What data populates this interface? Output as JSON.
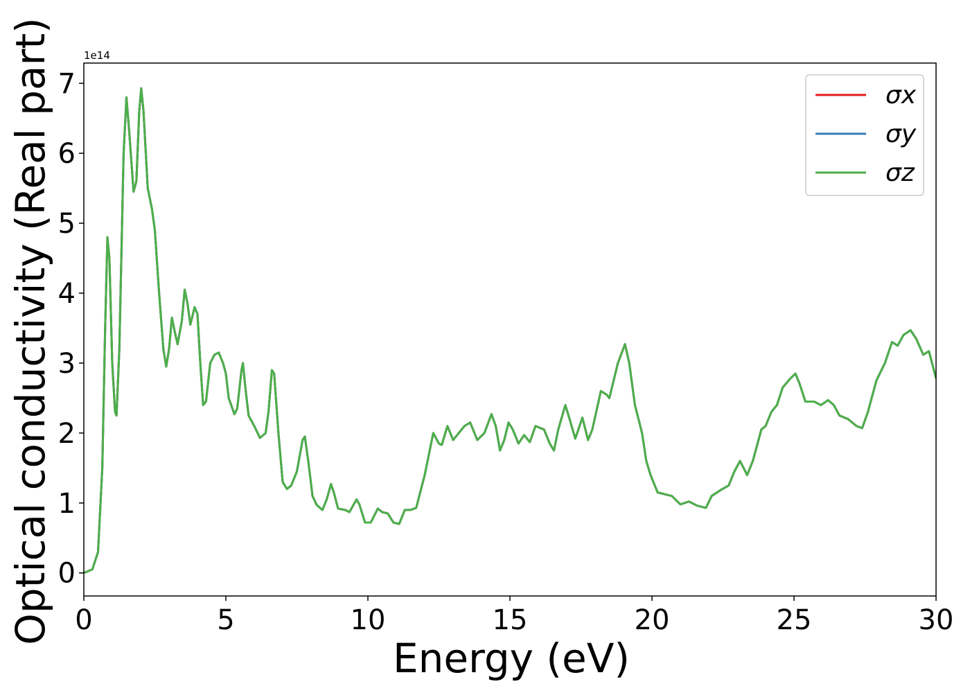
{
  "chart_data": {
    "type": "line",
    "ylabel": "Optical conductivity (Real part)",
    "xlabel": "Energy (eV)",
    "y_offset_label": "1e14",
    "xlim": [
      0,
      30
    ],
    "ylim": [
      -0.33,
      7.29
    ],
    "xticks": [
      0,
      5,
      10,
      15,
      20,
      25,
      30
    ],
    "yticks": [
      0,
      1,
      2,
      3,
      4,
      5,
      6,
      7
    ],
    "grid": false,
    "legend": "upper right",
    "x": [
      0,
      0.3,
      0.5,
      0.65,
      0.75,
      0.83,
      0.9,
      1.0,
      1.1,
      1.15,
      1.25,
      1.4,
      1.5,
      1.6,
      1.75,
      1.85,
      1.95,
      2.02,
      2.1,
      2.25,
      2.4,
      2.5,
      2.65,
      2.8,
      2.9,
      3.0,
      3.1,
      3.2,
      3.3,
      3.45,
      3.55,
      3.65,
      3.75,
      3.9,
      4.0,
      4.1,
      4.2,
      4.3,
      4.45,
      4.6,
      4.75,
      4.9,
      5.0,
      5.1,
      5.3,
      5.4,
      5.55,
      5.6,
      5.7,
      5.8,
      6.0,
      6.2,
      6.4,
      6.5,
      6.62,
      6.7,
      6.85,
      7.0,
      7.15,
      7.3,
      7.5,
      7.7,
      7.78,
      7.9,
      8.05,
      8.2,
      8.4,
      8.55,
      8.7,
      8.8,
      8.95,
      9.2,
      9.35,
      9.6,
      9.7,
      9.9,
      10.1,
      10.35,
      10.5,
      10.7,
      10.9,
      11.1,
      11.3,
      11.5,
      11.7,
      12.0,
      12.3,
      12.5,
      12.6,
      12.8,
      13.0,
      13.2,
      13.4,
      13.6,
      13.85,
      14.1,
      14.35,
      14.5,
      14.65,
      14.8,
      14.95,
      15.1,
      15.3,
      15.5,
      15.7,
      15.9,
      16.2,
      16.4,
      16.55,
      16.7,
      16.95,
      17.1,
      17.3,
      17.55,
      17.75,
      17.9,
      18.2,
      18.4,
      18.5,
      18.8,
      19.05,
      19.2,
      19.4,
      19.65,
      19.8,
      19.95,
      20.2,
      20.5,
      20.7,
      21.0,
      21.3,
      21.6,
      21.9,
      22.1,
      22.4,
      22.7,
      22.9,
      23.1,
      23.35,
      23.55,
      23.85,
      24.0,
      24.2,
      24.4,
      24.6,
      24.85,
      25.05,
      25.2,
      25.4,
      25.7,
      25.95,
      26.2,
      26.4,
      26.6,
      26.9,
      27.2,
      27.4,
      27.6,
      27.9,
      28.2,
      28.45,
      28.65,
      28.85,
      29.1,
      29.3,
      29.55,
      29.75,
      30.0
    ],
    "series": [
      {
        "name": "σx",
        "color": "#e41a1c",
        "values": [
          0,
          0.05,
          0.3,
          1.5,
          3.5,
          4.8,
          4.5,
          3.0,
          2.3,
          2.25,
          3.2,
          6.0,
          6.8,
          6.3,
          5.45,
          5.6,
          6.6,
          6.93,
          6.6,
          5.5,
          5.2,
          4.9,
          4.0,
          3.2,
          2.95,
          3.2,
          3.65,
          3.45,
          3.27,
          3.6,
          4.05,
          3.85,
          3.55,
          3.8,
          3.7,
          3.0,
          2.4,
          2.45,
          3.0,
          3.12,
          3.15,
          3.0,
          2.85,
          2.5,
          2.27,
          2.35,
          2.9,
          3.0,
          2.6,
          2.25,
          2.1,
          1.93,
          2.0,
          2.3,
          2.9,
          2.85,
          2.0,
          1.3,
          1.2,
          1.25,
          1.45,
          1.9,
          1.95,
          1.6,
          1.1,
          0.97,
          0.9,
          1.05,
          1.27,
          1.15,
          0.92,
          0.9,
          0.87,
          1.05,
          0.98,
          0.72,
          0.72,
          0.92,
          0.87,
          0.85,
          0.72,
          0.7,
          0.9,
          0.9,
          0.93,
          1.4,
          2.0,
          1.85,
          1.83,
          2.1,
          1.9,
          2.0,
          2.1,
          2.15,
          1.9,
          2.0,
          2.27,
          2.1,
          1.75,
          1.9,
          2.15,
          2.05,
          1.85,
          1.97,
          1.87,
          2.1,
          2.05,
          1.85,
          1.75,
          2.05,
          2.4,
          2.2,
          1.92,
          2.22,
          1.9,
          2.05,
          2.6,
          2.55,
          2.5,
          3.0,
          3.27,
          3.0,
          2.4,
          2.0,
          1.6,
          1.4,
          1.15,
          1.12,
          1.1,
          0.98,
          1.02,
          0.96,
          0.93,
          1.1,
          1.18,
          1.25,
          1.45,
          1.6,
          1.4,
          1.6,
          2.05,
          2.1,
          2.3,
          2.4,
          2.65,
          2.77,
          2.85,
          2.7,
          2.45,
          2.45,
          2.4,
          2.47,
          2.4,
          2.25,
          2.2,
          2.1,
          2.07,
          2.3,
          2.75,
          3.0,
          3.3,
          3.25,
          3.4,
          3.47,
          3.35,
          3.12,
          3.17,
          2.78
        ]
      },
      {
        "name": "σy",
        "color": "#377eb8",
        "values": [
          0,
          0.05,
          0.3,
          1.5,
          3.5,
          4.8,
          4.5,
          3.0,
          2.3,
          2.25,
          3.2,
          6.0,
          6.8,
          6.3,
          5.45,
          5.6,
          6.6,
          6.93,
          6.6,
          5.5,
          5.2,
          4.9,
          4.0,
          3.2,
          2.95,
          3.2,
          3.65,
          3.45,
          3.27,
          3.6,
          4.05,
          3.85,
          3.55,
          3.8,
          3.7,
          3.0,
          2.4,
          2.45,
          3.0,
          3.12,
          3.15,
          3.0,
          2.85,
          2.5,
          2.27,
          2.35,
          2.9,
          3.0,
          2.6,
          2.25,
          2.1,
          1.93,
          2.0,
          2.3,
          2.9,
          2.85,
          2.0,
          1.3,
          1.2,
          1.25,
          1.45,
          1.9,
          1.95,
          1.6,
          1.1,
          0.97,
          0.9,
          1.05,
          1.27,
          1.15,
          0.92,
          0.9,
          0.87,
          1.05,
          0.98,
          0.72,
          0.72,
          0.92,
          0.87,
          0.85,
          0.72,
          0.7,
          0.9,
          0.9,
          0.93,
          1.4,
          2.0,
          1.85,
          1.83,
          2.1,
          1.9,
          2.0,
          2.1,
          2.15,
          1.9,
          2.0,
          2.27,
          2.1,
          1.75,
          1.9,
          2.15,
          2.05,
          1.85,
          1.97,
          1.87,
          2.1,
          2.05,
          1.85,
          1.75,
          2.05,
          2.4,
          2.2,
          1.92,
          2.22,
          1.9,
          2.05,
          2.6,
          2.55,
          2.5,
          3.0,
          3.27,
          3.0,
          2.4,
          2.0,
          1.6,
          1.4,
          1.15,
          1.12,
          1.1,
          0.98,
          1.02,
          0.96,
          0.93,
          1.1,
          1.18,
          1.25,
          1.45,
          1.6,
          1.4,
          1.6,
          2.05,
          2.1,
          2.3,
          2.4,
          2.65,
          2.77,
          2.85,
          2.7,
          2.45,
          2.45,
          2.4,
          2.47,
          2.4,
          2.25,
          2.2,
          2.1,
          2.07,
          2.3,
          2.75,
          3.0,
          3.3,
          3.25,
          3.4,
          3.47,
          3.35,
          3.12,
          3.17,
          2.78
        ]
      },
      {
        "name": "σz",
        "color": "#4daf4a",
        "values": [
          0,
          0.05,
          0.3,
          1.5,
          3.5,
          4.8,
          4.5,
          3.0,
          2.3,
          2.25,
          3.2,
          6.0,
          6.8,
          6.3,
          5.45,
          5.6,
          6.6,
          6.93,
          6.6,
          5.5,
          5.2,
          4.9,
          4.0,
          3.2,
          2.95,
          3.2,
          3.65,
          3.45,
          3.27,
          3.6,
          4.05,
          3.85,
          3.55,
          3.8,
          3.7,
          3.0,
          2.4,
          2.45,
          3.0,
          3.12,
          3.15,
          3.0,
          2.85,
          2.5,
          2.27,
          2.35,
          2.9,
          3.0,
          2.6,
          2.25,
          2.1,
          1.93,
          2.0,
          2.3,
          2.9,
          2.85,
          2.0,
          1.3,
          1.2,
          1.25,
          1.45,
          1.9,
          1.95,
          1.6,
          1.1,
          0.97,
          0.9,
          1.05,
          1.27,
          1.15,
          0.92,
          0.9,
          0.87,
          1.05,
          0.98,
          0.72,
          0.72,
          0.92,
          0.87,
          0.85,
          0.72,
          0.7,
          0.9,
          0.9,
          0.93,
          1.4,
          2.0,
          1.85,
          1.83,
          2.1,
          1.9,
          2.0,
          2.1,
          2.15,
          1.9,
          2.0,
          2.27,
          2.1,
          1.75,
          1.9,
          2.15,
          2.05,
          1.85,
          1.97,
          1.87,
          2.1,
          2.05,
          1.85,
          1.75,
          2.05,
          2.4,
          2.2,
          1.92,
          2.22,
          1.9,
          2.05,
          2.6,
          2.55,
          2.5,
          3.0,
          3.27,
          3.0,
          2.4,
          2.0,
          1.6,
          1.4,
          1.15,
          1.12,
          1.1,
          0.98,
          1.02,
          0.96,
          0.93,
          1.1,
          1.18,
          1.25,
          1.45,
          1.6,
          1.4,
          1.6,
          2.05,
          2.1,
          2.3,
          2.4,
          2.65,
          2.77,
          2.85,
          2.7,
          2.45,
          2.45,
          2.4,
          2.47,
          2.4,
          2.25,
          2.2,
          2.1,
          2.07,
          2.3,
          2.75,
          3.0,
          3.3,
          3.25,
          3.4,
          3.47,
          3.35,
          3.12,
          3.17,
          2.78
        ]
      }
    ]
  }
}
